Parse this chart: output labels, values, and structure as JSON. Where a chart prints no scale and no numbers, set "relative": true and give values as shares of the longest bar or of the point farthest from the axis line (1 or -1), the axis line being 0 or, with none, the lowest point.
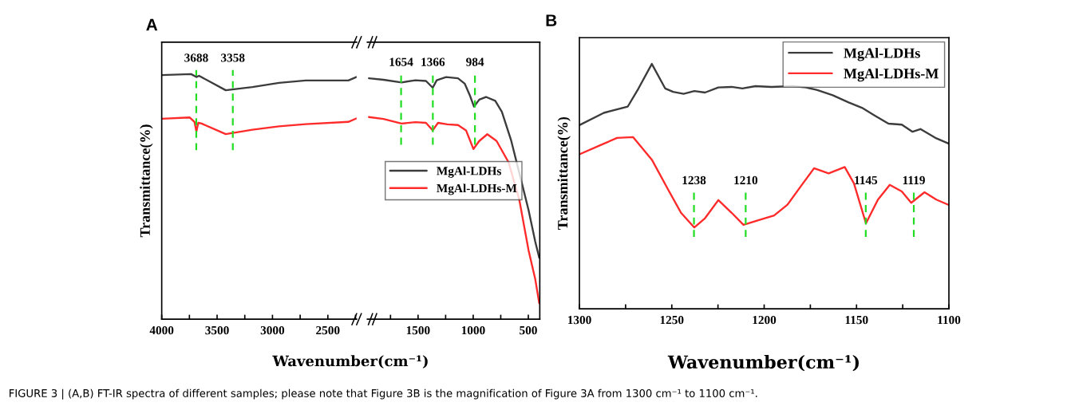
{
  "chart_data": [
    {
      "type": "line",
      "title": "A",
      "ylabel": "Transmittance(%)",
      "xlabel": "Wavenumber(cm⁻¹)",
      "relative": true,
      "xlim": [
        4000,
        2240
      ],
      "xticks": [
        4000,
        {
          "value": 3750,
          "label": null
        },
        3500,
        {
          "value": 3250,
          "label": null
        },
        3000,
        {
          "value": 2750,
          "label": null
        },
        2500,
        {
          "value": 2250,
          "label": null
        }
      ],
      "series": [
        {
          "color": "#3c3c3c",
          "x": [
            4000,
            3735,
            3687,
            3663,
            3422,
            3181,
            2941,
            2700,
            2315,
            2243
          ],
          "values": [
            0.996,
            1.0,
            0.988,
            0.993,
            0.934,
            0.947,
            0.964,
            0.974,
            0.974,
            0.988
          ]
        },
        {
          "color": "#ff2a2a",
          "x": [
            4000,
            3747,
            3704,
            3687,
            3670,
            3639,
            3422,
            3181,
            2941,
            2700,
            2315,
            2243
          ],
          "values": [
            0.818,
            0.823,
            0.805,
            0.765,
            0.801,
            0.798,
            0.755,
            0.773,
            0.787,
            0.796,
            0.805,
            0.819
          ]
        }
      ],
      "ref_lines": [
        {
          "axis": "x",
          "value": 3688,
          "label": "3688",
          "color": "#22dd22",
          "line_style": "dashed"
        },
        {
          "axis": "x",
          "value": 3358,
          "label": "3358",
          "color": "#22dd22",
          "line_style": "dashed"
        }
      ],
      "annotations": [
        "FIGURE 3 | (A,B) FT-IR spectra of different samples; please note that Figure 3B is the magnification of Figure 3A from 1300 cm⁻¹ to 1100 cm⁻¹."
      ]
    },
    {
      "type": "line",
      "relative": true,
      "legend": "center",
      "xlim": [
        1960,
        396
      ],
      "xticks": [
        {
          "value": 1750,
          "label": null
        },
        1500,
        {
          "value": 1250,
          "label": null
        },
        1000,
        {
          "value": 750,
          "label": null
        },
        500
      ],
      "series": [
        {
          "name": "MgAl-LDHs",
          "color": "#3c3c3c",
          "x": [
            1946,
            1814,
            1650,
            1524,
            1428,
            1367,
            1331,
            1246,
            1138,
            1077,
            1029,
            993,
            945,
            884,
            800,
            740,
            655,
            558,
            498,
            437,
            401
          ],
          "values": [
            0.995,
            0.989,
            0.978,
            0.987,
            0.984,
            0.956,
            0.987,
            1.0,
            0.995,
            0.973,
            0.923,
            0.878,
            0.907,
            0.918,
            0.902,
            0.857,
            0.737,
            0.561,
            0.451,
            0.32,
            0.254
          ]
        },
        {
          "name": "MgAl-LDHs-M",
          "color": "#ff2a2a",
          "x": [
            1946,
            1814,
            1650,
            1524,
            1428,
            1367,
            1319,
            1234,
            1138,
            1065,
            998,
            945,
            872,
            788,
            679,
            582,
            498,
            437,
            401
          ],
          "values": [
            0.835,
            0.827,
            0.808,
            0.814,
            0.811,
            0.78,
            0.811,
            0.805,
            0.802,
            0.78,
            0.703,
            0.736,
            0.764,
            0.736,
            0.648,
            0.494,
            0.285,
            0.165,
            0.066
          ]
        }
      ],
      "ref_lines": [
        {
          "axis": "x",
          "value": 1654,
          "label": "1654",
          "color": "#22dd22",
          "line_style": "dashed"
        },
        {
          "axis": "x",
          "value": 1366,
          "label": "1366",
          "color": "#22dd22",
          "line_style": "dashed"
        },
        {
          "axis": "x",
          "value": 984,
          "label": "984",
          "color": "#22dd22",
          "line_style": "dashed"
        }
      ]
    },
    {
      "type": "line",
      "title": "B",
      "ylabel": "Transmittance(%)",
      "xlabel": "Wavenumber(cm⁻¹)",
      "relative": true,
      "legend": "top right",
      "xlim": [
        1300,
        1100
      ],
      "xticks": [
        1300,
        {
          "value": 1275,
          "label": null
        },
        1250,
        {
          "value": 1225,
          "label": null
        },
        1200,
        {
          "value": 1175,
          "label": null
        },
        1150,
        {
          "value": 1125,
          "label": null
        },
        1100
      ],
      "series": [
        {
          "name": "MgAl-LDHs",
          "color": "#3c3c3c",
          "x": [
            1300,
            1286.8,
            1273.8,
            1268,
            1260.8,
            1253.6,
            1249.3,
            1243.6,
            1237.8,
            1232,
            1224.8,
            1217.6,
            1211.8,
            1204.7,
            1196,
            1184.5,
            1177.3,
            1171.6,
            1162.9,
            1154.3,
            1147.1,
            1139.9,
            1132.7,
            1125.5,
            1119.7,
            1115.4,
            1106.8,
            1100
          ],
          "values": [
            0.75,
            0.8,
            0.826,
            0.9,
            1.0,
            0.9,
            0.886,
            0.878,
            0.889,
            0.883,
            0.904,
            0.906,
            0.9,
            0.909,
            0.906,
            0.909,
            0.904,
            0.894,
            0.872,
            0.843,
            0.821,
            0.788,
            0.756,
            0.752,
            0.723,
            0.734,
            0.696,
            0.674
          ]
        },
        {
          "name": "MgAl-LDHs-M",
          "color": "#ff2a2a",
          "x": [
            1300,
            1286.8,
            1279.6,
            1270.9,
            1260.8,
            1252.2,
            1245,
            1237.8,
            1232,
            1224.8,
            1217.6,
            1211.2,
            1203.2,
            1194.6,
            1187.4,
            1180.2,
            1173,
            1165.1,
            1156.4,
            1151.4,
            1144.9,
            1138.4,
            1132,
            1125.5,
            1120.4,
            1113.2,
            1106.8,
            1100
          ],
          "values": [
            0.631,
            0.674,
            0.698,
            0.701,
            0.609,
            0.49,
            0.392,
            0.332,
            0.37,
            0.444,
            0.392,
            0.343,
            0.362,
            0.381,
            0.425,
            0.5,
            0.574,
            0.553,
            0.579,
            0.512,
            0.349,
            0.446,
            0.506,
            0.479,
            0.433,
            0.476,
            0.446,
            0.424
          ]
        }
      ],
      "ref_lines": [
        {
          "axis": "x",
          "value": 1238,
          "label": "1238",
          "color": "#22dd22",
          "line_style": "dashed"
        },
        {
          "axis": "x",
          "value": 1210,
          "label": "1210",
          "color": "#22dd22",
          "line_style": "dashed"
        },
        {
          "axis": "x",
          "value": 1145,
          "label": "1145",
          "color": "#22dd22",
          "line_style": "dashed"
        },
        {
          "axis": "x",
          "value": 1119,
          "label": "1119",
          "color": "#22dd22",
          "line_style": "dashed"
        }
      ]
    }
  ]
}
